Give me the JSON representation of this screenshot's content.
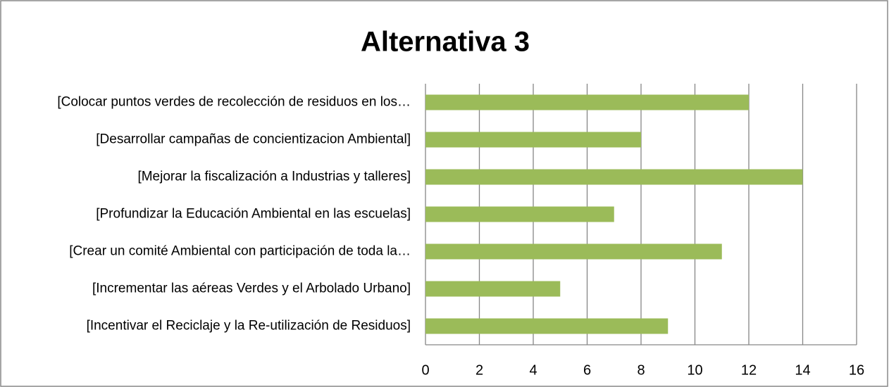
{
  "chart_data": {
    "type": "bar",
    "orientation": "horizontal",
    "title": "Alternativa 3",
    "categories": [
      "[Colocar puntos verdes de recolección de residuos en los…",
      "[Desarrollar campañas de concientizacion Ambiental]",
      "[Mejorar la fiscalización a Industrias y talleres]",
      "[Profundizar la Educación Ambiental en las escuelas]",
      "[Crear un comité Ambiental con participación de toda la…",
      "[Incrementar las aéreas Verdes y el Arbolado Urbano]",
      "[Incentivar el Reciclaje y la Re-utilización de Residuos]"
    ],
    "values": [
      12,
      8,
      14,
      7,
      11,
      5,
      9
    ],
    "color": "#9bbb59",
    "xlim": [
      0,
      16
    ],
    "xticks": [
      0,
      2,
      4,
      6,
      8,
      10,
      12,
      14,
      16
    ],
    "grid": true
  }
}
